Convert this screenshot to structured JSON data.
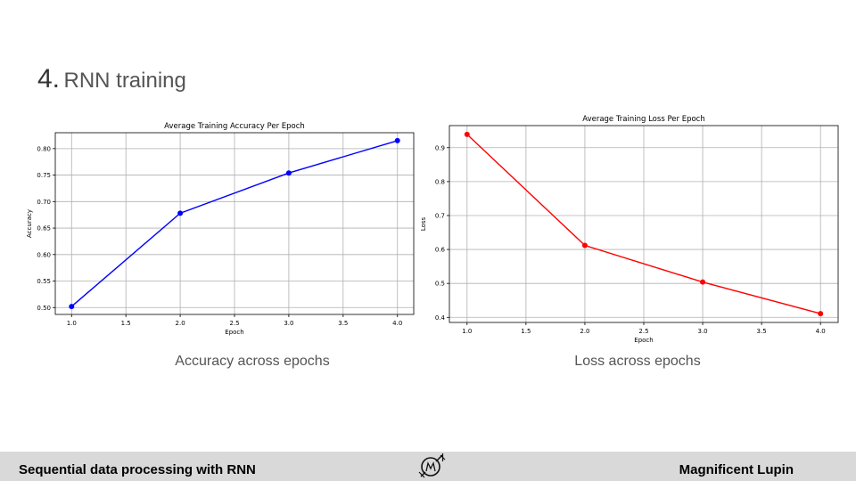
{
  "slide": {
    "title_number": "4.",
    "title_text": "RNN training"
  },
  "captions": {
    "left": "Accuracy across epochs",
    "right": "Loss across epochs"
  },
  "footer": {
    "left": "Sequential data processing with RNN",
    "right": "Magnificent Lupin",
    "logo_icon": "compass-logo-icon"
  },
  "chart_data": [
    {
      "type": "line",
      "title": "Average Training Accuracy Per Epoch",
      "xlabel": "Epoch",
      "ylabel": "Accuracy",
      "x": [
        1.0,
        2.0,
        3.0,
        4.0
      ],
      "series": [
        {
          "values": [
            0.502,
            0.678,
            0.754,
            0.815
          ],
          "color": "#0000ff"
        }
      ],
      "xticks": [
        "1.0",
        "1.5",
        "2.0",
        "2.5",
        "3.0",
        "3.5",
        "4.0"
      ],
      "yticks": [
        "0.50",
        "0.55",
        "0.60",
        "0.65",
        "0.70",
        "0.75",
        "0.80"
      ],
      "xlim": [
        0.85,
        4.15
      ],
      "ylim": [
        0.487,
        0.83
      ],
      "grid": true
    },
    {
      "type": "line",
      "title": "Average Training Loss Per Epoch",
      "xlabel": "Epoch",
      "ylabel": "Loss",
      "x": [
        1.0,
        2.0,
        3.0,
        4.0
      ],
      "series": [
        {
          "values": [
            0.939,
            0.612,
            0.504,
            0.411
          ],
          "color": "#ff0000"
        }
      ],
      "xticks": [
        "1.0",
        "1.5",
        "2.0",
        "2.5",
        "3.0",
        "3.5",
        "4.0"
      ],
      "yticks": [
        "0.4",
        "0.5",
        "0.6",
        "0.7",
        "0.8",
        "0.9"
      ],
      "xlim": [
        0.85,
        4.15
      ],
      "ylim": [
        0.385,
        0.965
      ],
      "grid": true
    }
  ]
}
